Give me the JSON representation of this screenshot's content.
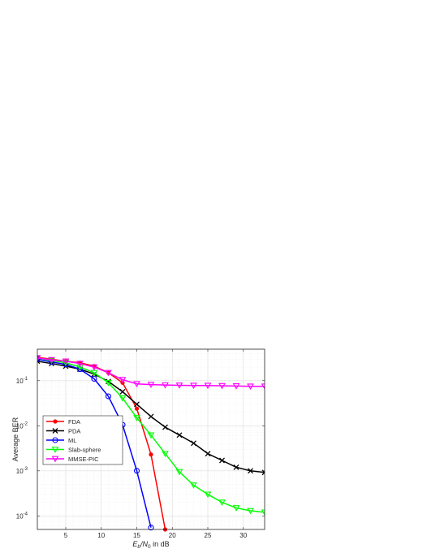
{
  "chart_data": {
    "type": "line",
    "title": "",
    "xlabel": {
      "prefix": "E",
      "prefix_sub": "b",
      "mid": "/N",
      "mid_sub": "0",
      "suffix": " in dB"
    },
    "ylabel": "Average BER",
    "xlim": [
      1,
      33
    ],
    "ylim": [
      5e-05,
      0.5
    ],
    "yscale": "log",
    "grid": true,
    "minor_grid": true,
    "legend_position": "lower-left",
    "xticks": [
      5,
      10,
      15,
      20,
      25,
      30
    ],
    "xtick_labels": [
      "5",
      "10",
      "15",
      "20",
      "25",
      "30"
    ],
    "yticks": [
      0.1,
      0.01,
      0.001,
      0.0001
    ],
    "ytick_labels": [
      {
        "base": "10",
        "exp": "-1"
      },
      {
        "base": "10",
        "exp": "-2"
      },
      {
        "base": "10",
        "exp": "-3"
      },
      {
        "base": "10",
        "exp": "-4"
      }
    ],
    "series": [
      {
        "name": "FDA",
        "color": "#ff0000",
        "marker": "dot",
        "x": [
          1,
          3,
          5,
          7,
          9,
          11,
          13,
          15,
          17,
          19
        ],
        "y": [
          0.33,
          0.3,
          0.27,
          0.25,
          0.21,
          0.15,
          0.09,
          0.024,
          0.0023,
          5e-05
        ]
      },
      {
        "name": "PDA",
        "color": "#000000",
        "marker": "x",
        "x": [
          1,
          3,
          5,
          7,
          9,
          11,
          13,
          15,
          17,
          19,
          21,
          23,
          25,
          27,
          29,
          31,
          33
        ],
        "y": [
          0.27,
          0.24,
          0.21,
          0.18,
          0.14,
          0.096,
          0.057,
          0.03,
          0.016,
          0.0093,
          0.0062,
          0.0041,
          0.0024,
          0.0017,
          0.0012,
          0.001,
          0.00092
        ]
      },
      {
        "name": "ML",
        "color": "#0000ff",
        "marker": "circle",
        "x": [
          1,
          3,
          5,
          7,
          9,
          11,
          13,
          15,
          17
        ],
        "y": [
          0.3,
          0.26,
          0.23,
          0.18,
          0.11,
          0.045,
          0.0105,
          0.001,
          5.5e-05
        ]
      },
      {
        "name": "Slab-sphere",
        "color": "#00ff00",
        "marker": "triangle-down",
        "x": [
          1,
          3,
          5,
          7,
          9,
          11,
          13,
          15,
          17,
          19,
          21,
          23,
          25,
          27,
          29,
          31,
          33
        ],
        "y": [
          0.32,
          0.28,
          0.25,
          0.2,
          0.15,
          0.09,
          0.041,
          0.015,
          0.0062,
          0.0024,
          0.00095,
          0.00048,
          0.0003,
          0.0002,
          0.00015,
          0.00013,
          0.00012
        ]
      },
      {
        "name": "MMSE-PIC",
        "color": "#ff00ff",
        "marker": "triangle-down",
        "x": [
          1,
          3,
          5,
          7,
          9,
          11,
          13,
          15,
          17,
          19,
          21,
          23,
          25,
          27,
          29,
          31,
          33
        ],
        "y": [
          0.32,
          0.29,
          0.27,
          0.24,
          0.2,
          0.15,
          0.105,
          0.085,
          0.082,
          0.08,
          0.079,
          0.078,
          0.078,
          0.077,
          0.076,
          0.075,
          0.075
        ]
      }
    ]
  }
}
